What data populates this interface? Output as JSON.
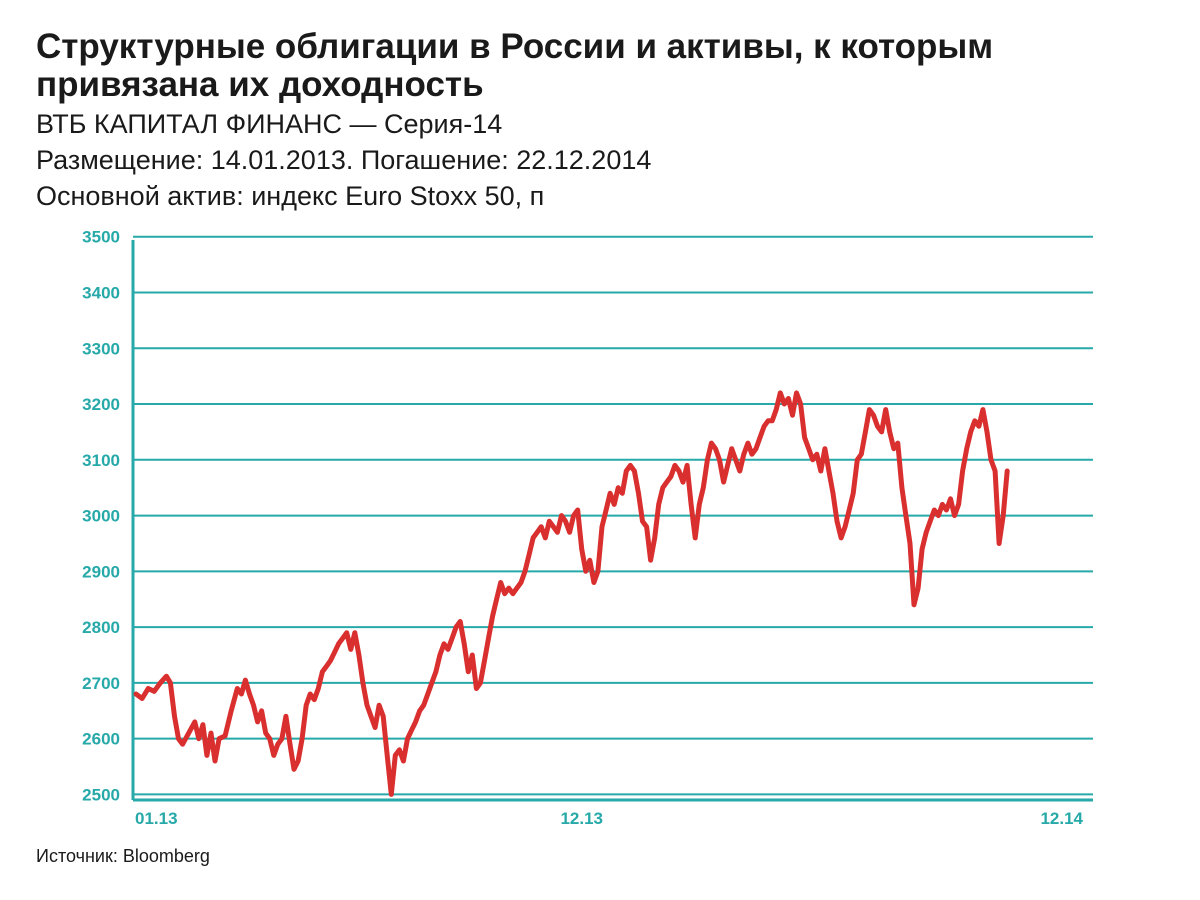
{
  "header": {
    "title": "Структурные облигации в России и активы, к которым привязана их доходность",
    "line1": "ВТБ КАПИТАЛ ФИНАНС — Серия-14",
    "line2": "Размещение: 14.01.2013. Погашение: 22.12.2014",
    "line3": "Основной актив: индекс Euro Stoxx 50, п"
  },
  "footer": {
    "source": "Источник: Bloomberg"
  },
  "colors": {
    "line": "#d9302f",
    "grid": "#26a9a8",
    "axis": "#26a9a8",
    "text": "#1a1a1a"
  },
  "chart_data": {
    "type": "line",
    "title": "",
    "xlabel": "",
    "ylabel": "",
    "ylim": [
      2490,
      3530
    ],
    "yticks": [
      2500,
      2600,
      2700,
      2800,
      2900,
      3000,
      3100,
      3200,
      3300,
      3400,
      3500
    ],
    "xticks": [
      {
        "label": "01.13",
        "month": 0
      },
      {
        "label": "12.13",
        "month": 11
      },
      {
        "label": "12.14",
        "month": 23
      }
    ],
    "x_unit": "months since 01.13",
    "grid": true,
    "series": [
      {
        "values": [
          [
            0.0,
            2680
          ],
          [
            0.15,
            2672
          ],
          [
            0.3,
            2690
          ],
          [
            0.45,
            2685
          ],
          [
            0.6,
            2700
          ],
          [
            0.75,
            2712
          ],
          [
            0.85,
            2700
          ],
          [
            0.95,
            2640
          ],
          [
            1.05,
            2600
          ],
          [
            1.15,
            2590
          ],
          [
            1.3,
            2610
          ],
          [
            1.45,
            2630
          ],
          [
            1.55,
            2600
          ],
          [
            1.65,
            2625
          ],
          [
            1.75,
            2570
          ],
          [
            1.85,
            2610
          ],
          [
            1.95,
            2560
          ],
          [
            2.05,
            2600
          ],
          [
            2.2,
            2605
          ],
          [
            2.35,
            2650
          ],
          [
            2.5,
            2690
          ],
          [
            2.6,
            2680
          ],
          [
            2.7,
            2705
          ],
          [
            2.8,
            2680
          ],
          [
            2.9,
            2660
          ],
          [
            3.0,
            2630
          ],
          [
            3.1,
            2650
          ],
          [
            3.2,
            2610
          ],
          [
            3.3,
            2600
          ],
          [
            3.4,
            2570
          ],
          [
            3.5,
            2590
          ],
          [
            3.6,
            2600
          ],
          [
            3.7,
            2640
          ],
          [
            3.8,
            2590
          ],
          [
            3.9,
            2545
          ],
          [
            4.0,
            2560
          ],
          [
            4.1,
            2600
          ],
          [
            4.2,
            2660
          ],
          [
            4.3,
            2680
          ],
          [
            4.4,
            2670
          ],
          [
            4.5,
            2690
          ],
          [
            4.6,
            2720
          ],
          [
            4.7,
            2730
          ],
          [
            4.8,
            2740
          ],
          [
            4.9,
            2755
          ],
          [
            5.0,
            2770
          ],
          [
            5.1,
            2780
          ],
          [
            5.2,
            2790
          ],
          [
            5.3,
            2760
          ],
          [
            5.4,
            2790
          ],
          [
            5.5,
            2750
          ],
          [
            5.6,
            2700
          ],
          [
            5.7,
            2660
          ],
          [
            5.8,
            2640
          ],
          [
            5.9,
            2620
          ],
          [
            6.0,
            2660
          ],
          [
            6.1,
            2640
          ],
          [
            6.2,
            2570
          ],
          [
            6.3,
            2500
          ],
          [
            6.4,
            2570
          ],
          [
            6.5,
            2580
          ],
          [
            6.6,
            2560
          ],
          [
            6.7,
            2600
          ],
          [
            6.8,
            2615
          ],
          [
            6.9,
            2630
          ],
          [
            7.0,
            2650
          ],
          [
            7.1,
            2660
          ],
          [
            7.2,
            2680
          ],
          [
            7.3,
            2700
          ],
          [
            7.4,
            2720
          ],
          [
            7.5,
            2750
          ],
          [
            7.6,
            2770
          ],
          [
            7.7,
            2760
          ],
          [
            7.8,
            2780
          ],
          [
            7.9,
            2800
          ],
          [
            8.0,
            2810
          ],
          [
            8.1,
            2770
          ],
          [
            8.2,
            2720
          ],
          [
            8.3,
            2750
          ],
          [
            8.4,
            2690
          ],
          [
            8.5,
            2700
          ],
          [
            8.6,
            2740
          ],
          [
            8.7,
            2780
          ],
          [
            8.8,
            2820
          ],
          [
            8.9,
            2850
          ],
          [
            9.0,
            2880
          ],
          [
            9.1,
            2860
          ],
          [
            9.2,
            2870
          ],
          [
            9.3,
            2860
          ],
          [
            9.4,
            2870
          ],
          [
            9.5,
            2880
          ],
          [
            9.6,
            2900
          ],
          [
            9.7,
            2930
          ],
          [
            9.8,
            2960
          ],
          [
            9.9,
            2970
          ],
          [
            10.0,
            2980
          ],
          [
            10.1,
            2960
          ],
          [
            10.2,
            2990
          ],
          [
            10.3,
            2980
          ],
          [
            10.4,
            2970
          ],
          [
            10.5,
            3000
          ],
          [
            10.6,
            2990
          ],
          [
            10.7,
            2970
          ],
          [
            10.8,
            3000
          ],
          [
            10.9,
            3010
          ],
          [
            11.0,
            2940
          ],
          [
            11.1,
            2900
          ],
          [
            11.2,
            2920
          ],
          [
            11.3,
            2880
          ],
          [
            11.4,
            2900
          ],
          [
            11.5,
            2980
          ],
          [
            11.6,
            3010
          ],
          [
            11.7,
            3040
          ],
          [
            11.8,
            3020
          ],
          [
            11.9,
            3050
          ],
          [
            12.0,
            3040
          ],
          [
            12.1,
            3080
          ],
          [
            12.2,
            3090
          ],
          [
            12.3,
            3080
          ],
          [
            12.4,
            3040
          ],
          [
            12.5,
            2990
          ],
          [
            12.6,
            2980
          ],
          [
            12.7,
            2920
          ],
          [
            12.8,
            2960
          ],
          [
            12.9,
            3020
          ],
          [
            13.0,
            3050
          ],
          [
            13.1,
            3060
          ],
          [
            13.2,
            3070
          ],
          [
            13.3,
            3090
          ],
          [
            13.4,
            3080
          ],
          [
            13.5,
            3060
          ],
          [
            13.6,
            3090
          ],
          [
            13.7,
            3020
          ],
          [
            13.8,
            2960
          ],
          [
            13.9,
            3020
          ],
          [
            14.0,
            3050
          ],
          [
            14.1,
            3100
          ],
          [
            14.2,
            3130
          ],
          [
            14.3,
            3120
          ],
          [
            14.4,
            3100
          ],
          [
            14.5,
            3060
          ],
          [
            14.6,
            3090
          ],
          [
            14.7,
            3120
          ],
          [
            14.8,
            3100
          ],
          [
            14.9,
            3080
          ],
          [
            15.0,
            3110
          ],
          [
            15.1,
            3130
          ],
          [
            15.2,
            3110
          ],
          [
            15.3,
            3120
          ],
          [
            15.4,
            3140
          ],
          [
            15.5,
            3160
          ],
          [
            15.6,
            3170
          ],
          [
            15.7,
            3170
          ],
          [
            15.8,
            3190
          ],
          [
            15.9,
            3220
          ],
          [
            16.0,
            3200
          ],
          [
            16.1,
            3210
          ],
          [
            16.2,
            3180
          ],
          [
            16.3,
            3220
          ],
          [
            16.4,
            3200
          ],
          [
            16.5,
            3140
          ],
          [
            16.6,
            3120
          ],
          [
            16.7,
            3100
          ],
          [
            16.8,
            3110
          ],
          [
            16.9,
            3080
          ],
          [
            17.0,
            3120
          ],
          [
            17.1,
            3080
          ],
          [
            17.2,
            3040
          ],
          [
            17.3,
            2990
          ],
          [
            17.4,
            2960
          ],
          [
            17.5,
            2980
          ],
          [
            17.6,
            3010
          ],
          [
            17.7,
            3040
          ],
          [
            17.8,
            3100
          ],
          [
            17.9,
            3110
          ],
          [
            18.0,
            3150
          ],
          [
            18.1,
            3190
          ],
          [
            18.2,
            3180
          ],
          [
            18.3,
            3160
          ],
          [
            18.4,
            3150
          ],
          [
            18.5,
            3190
          ],
          [
            18.6,
            3150
          ],
          [
            18.7,
            3120
          ],
          [
            18.8,
            3130
          ],
          [
            18.9,
            3050
          ],
          [
            19.0,
            3000
          ],
          [
            19.1,
            2950
          ],
          [
            19.2,
            2840
          ],
          [
            19.3,
            2870
          ],
          [
            19.4,
            2940
          ],
          [
            19.5,
            2970
          ],
          [
            19.6,
            2990
          ],
          [
            19.7,
            3010
          ],
          [
            19.8,
            3000
          ],
          [
            19.9,
            3020
          ],
          [
            20.0,
            3010
          ],
          [
            20.1,
            3030
          ],
          [
            20.2,
            3000
          ],
          [
            20.3,
            3020
          ],
          [
            20.4,
            3080
          ],
          [
            20.5,
            3120
          ],
          [
            20.6,
            3150
          ],
          [
            20.7,
            3170
          ],
          [
            20.8,
            3160
          ],
          [
            20.9,
            3190
          ],
          [
            21.0,
            3150
          ],
          [
            21.1,
            3100
          ],
          [
            21.2,
            3080
          ],
          [
            21.3,
            2950
          ],
          [
            21.4,
            3000
          ],
          [
            21.5,
            3080
          ]
        ]
      }
    ]
  }
}
